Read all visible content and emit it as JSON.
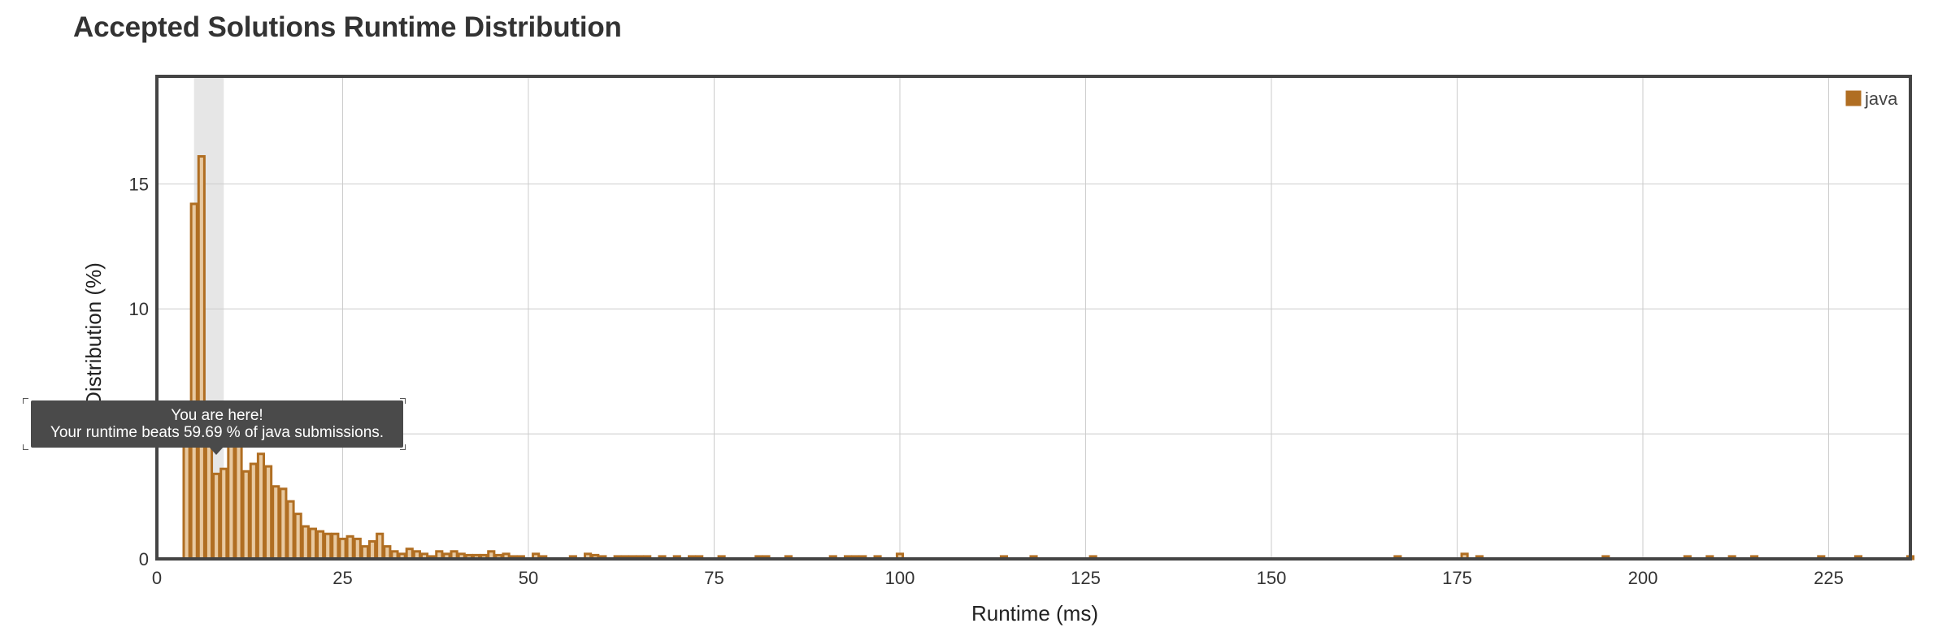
{
  "title": "Accepted Solutions Runtime Distribution",
  "tooltip": {
    "line1": "You are here!",
    "line2": "Your runtime beats 59.69 % of java submissions."
  },
  "colors": {
    "bar_fill": "#e8c9a0",
    "bar_stroke": "#b06e22",
    "legend": "#b06e22",
    "highlight": "#e6e6e6",
    "grid": "#cccccc",
    "frame": "#444444"
  },
  "chart_data": {
    "type": "bar",
    "title": "Accepted Solutions Runtime Distribution",
    "xlabel": "Runtime (ms)",
    "ylabel": "Distribution (%)",
    "xlim": [
      0,
      236
    ],
    "ylim": [
      0,
      19.3
    ],
    "xticks": [
      0,
      25,
      50,
      75,
      100,
      125,
      150,
      175,
      200,
      225
    ],
    "yticks": [
      0,
      5,
      10,
      15
    ],
    "grid": true,
    "legend": {
      "position": "top-right",
      "entries": [
        "java"
      ]
    },
    "highlight_range": [
      5,
      9
    ],
    "bar_width": 1,
    "series": [
      {
        "name": "java",
        "x": [
          4,
          5,
          6,
          7,
          8,
          9,
          10,
          11,
          12,
          13,
          14,
          15,
          16,
          17,
          18,
          19,
          20,
          21,
          22,
          23,
          24,
          25,
          26,
          27,
          28,
          29,
          30,
          31,
          32,
          33,
          34,
          35,
          36,
          37,
          38,
          39,
          40,
          41,
          42,
          43,
          44,
          45,
          46,
          47,
          48,
          49,
          51,
          52,
          56,
          58,
          59,
          60,
          62,
          63,
          64,
          65,
          66,
          68,
          70,
          72,
          73,
          76,
          81,
          82,
          85,
          91,
          93,
          94,
          95,
          97,
          100,
          114,
          118,
          126,
          167,
          176,
          178,
          195,
          206,
          209,
          212,
          215,
          224,
          229,
          236
        ],
        "values": [
          5.1,
          14.2,
          16.1,
          5.0,
          3.4,
          3.6,
          4.7,
          5.0,
          3.5,
          3.8,
          4.2,
          3.7,
          2.9,
          2.8,
          2.3,
          1.8,
          1.3,
          1.2,
          1.1,
          1.0,
          1.0,
          0.8,
          0.9,
          0.8,
          0.5,
          0.7,
          1.0,
          0.5,
          0.3,
          0.2,
          0.4,
          0.3,
          0.2,
          0.1,
          0.3,
          0.2,
          0.3,
          0.2,
          0.15,
          0.15,
          0.15,
          0.3,
          0.15,
          0.2,
          0.1,
          0.1,
          0.2,
          0.1,
          0.1,
          0.2,
          0.15,
          0.1,
          0.1,
          0.1,
          0.1,
          0.1,
          0.1,
          0.1,
          0.1,
          0.1,
          0.1,
          0.1,
          0.1,
          0.1,
          0.1,
          0.1,
          0.1,
          0.1,
          0.1,
          0.1,
          0.2,
          0.1,
          0.1,
          0.1,
          0.1,
          0.2,
          0.1,
          0.1,
          0.1,
          0.1,
          0.1,
          0.1,
          0.1,
          0.1,
          0.1
        ]
      }
    ]
  }
}
